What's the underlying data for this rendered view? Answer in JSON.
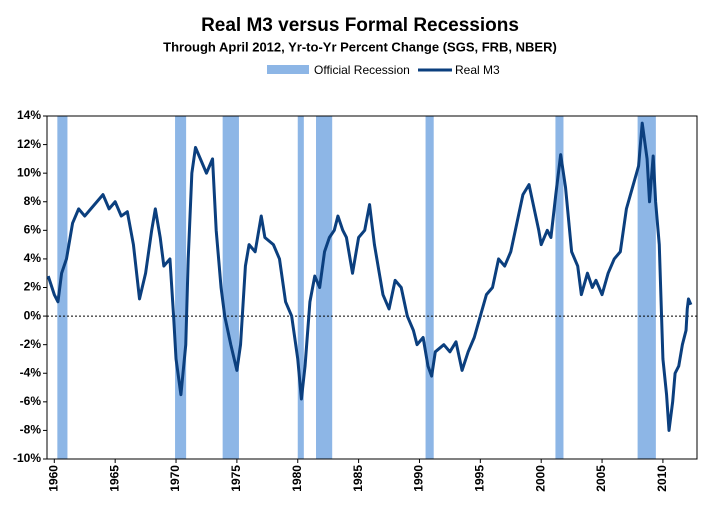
{
  "chart_data": {
    "type": "line",
    "title": "Real M3 versus Formal Recessions",
    "subtitle": "Through April 2012, Yr-to-Yr  Percent Change (SGS, FRB, NBER)",
    "x": [
      1959.5,
      1960.0,
      1960.3,
      1960.6,
      1961.0,
      1961.5,
      1962.0,
      1962.5,
      1963.0,
      1963.5,
      1964.0,
      1964.5,
      1965.0,
      1965.5,
      1966.0,
      1966.5,
      1967.0,
      1967.5,
      1968.0,
      1968.3,
      1968.7,
      1969.0,
      1969.5,
      1969.8,
      1970.0,
      1970.4,
      1970.8,
      1971.0,
      1971.3,
      1971.6,
      1972.0,
      1972.5,
      1973.0,
      1973.3,
      1973.7,
      1974.0,
      1974.5,
      1975.0,
      1975.3,
      1975.7,
      1976.0,
      1976.5,
      1977.0,
      1977.3,
      1978.0,
      1978.5,
      1979.0,
      1979.5,
      1980.0,
      1980.3,
      1980.6,
      1981.0,
      1981.4,
      1981.8,
      1982.2,
      1982.6,
      1983.0,
      1983.3,
      1983.7,
      1984.0,
      1984.5,
      1985.0,
      1985.5,
      1985.9,
      1986.3,
      1986.7,
      1987.0,
      1987.5,
      1988.0,
      1988.5,
      1989.0,
      1989.5,
      1989.8,
      1990.3,
      1990.7,
      1991.0,
      1991.3,
      1992.0,
      1992.5,
      1993.0,
      1993.5,
      1994.0,
      1994.5,
      1995.0,
      1995.5,
      1996.0,
      1996.5,
      1997.0,
      1997.5,
      1998.0,
      1998.5,
      1999.0,
      1999.3,
      1999.8,
      2000.0,
      2000.5,
      2000.8,
      2001.2,
      2001.6,
      2002.0,
      2002.5,
      2003.0,
      2003.3,
      2003.8,
      2004.2,
      2004.5,
      2005.0,
      2005.5,
      2006.0,
      2006.5,
      2007.0,
      2007.5,
      2008.0,
      2008.3,
      2008.7,
      2008.9,
      2009.2,
      2009.4,
      2009.7,
      2010.0,
      2010.3,
      2010.5,
      2010.8,
      2011.0,
      2011.3,
      2011.6,
      2011.9,
      2012.0,
      2012.1,
      2012.3
    ],
    "series": [
      {
        "name": "Real M3",
        "color": "#0b3f7e",
        "values": [
          2.8,
          1.5,
          1.0,
          3.0,
          4.0,
          6.5,
          7.5,
          7.0,
          7.5,
          8.0,
          8.5,
          7.5,
          8.0,
          7.0,
          7.3,
          5.0,
          1.2,
          3.0,
          6.0,
          7.5,
          5.5,
          3.5,
          4.0,
          0.0,
          -3.0,
          -5.5,
          -2.0,
          4.0,
          10.0,
          11.8,
          11.0,
          10.0,
          11.0,
          6.0,
          2.0,
          0.0,
          -2.0,
          -3.8,
          -2.0,
          3.5,
          5.0,
          4.5,
          7.0,
          5.5,
          5.0,
          4.0,
          1.0,
          0.0,
          -3.0,
          -5.8,
          -3.5,
          1.0,
          2.8,
          2.0,
          4.5,
          5.5,
          6.0,
          7.0,
          6.0,
          5.5,
          3.0,
          5.5,
          6.0,
          7.8,
          5.0,
          3.0,
          1.5,
          0.5,
          2.5,
          2.0,
          0.0,
          -1.0,
          -2.0,
          -1.5,
          -3.5,
          -4.2,
          -2.5,
          -2.0,
          -2.5,
          -1.8,
          -3.8,
          -2.5,
          -1.5,
          0.0,
          1.5,
          2.0,
          4.0,
          3.5,
          4.5,
          6.5,
          8.5,
          9.2,
          8.0,
          6.0,
          5.0,
          6.0,
          5.5,
          8.5,
          11.3,
          9.0,
          4.5,
          3.5,
          1.5,
          3.0,
          2.0,
          2.5,
          1.5,
          3.0,
          4.0,
          4.5,
          7.5,
          9.0,
          10.5,
          13.5,
          11.0,
          8.0,
          11.2,
          8.0,
          5.0,
          -3.0,
          -5.5,
          -8.0,
          -6.0,
          -4.0,
          -3.5,
          -2.0,
          -1.0,
          0.5,
          1.2,
          0.8
        ]
      }
    ],
    "recessions": {
      "name": "Official Recession",
      "color": "#8db6e6",
      "ranges": [
        [
          1960.25,
          1961.08
        ],
        [
          1969.92,
          1970.83
        ],
        [
          1973.83,
          1975.17
        ],
        [
          1980.0,
          1980.5
        ],
        [
          1981.5,
          1982.83
        ],
        [
          1990.5,
          1991.17
        ],
        [
          2001.17,
          2001.83
        ],
        [
          2007.92,
          2009.42
        ]
      ]
    },
    "xlim": [
      1959.4,
      2012.8
    ],
    "xticks": [
      1960,
      1965,
      1970,
      1975,
      1980,
      1985,
      1990,
      1995,
      2000,
      2005,
      2010
    ],
    "ylim": [
      -10,
      14
    ],
    "yticks": [
      {
        "value": -10,
        "label": "-10%"
      },
      {
        "value": -8,
        "label": "-8%"
      },
      {
        "value": -6,
        "label": "-6%"
      },
      {
        "value": -4,
        "label": "-4%"
      },
      {
        "value": -2,
        "label": "-2%"
      },
      {
        "value": 0,
        "label": "0%"
      },
      {
        "value": 2,
        "label": "2%"
      },
      {
        "value": 4,
        "label": "4%"
      },
      {
        "value": 6,
        "label": "6%"
      },
      {
        "value": 8,
        "label": "8%"
      },
      {
        "value": 10,
        "label": "10%"
      },
      {
        "value": 12,
        "label": "12%"
      },
      {
        "value": 14,
        "label": "14%"
      }
    ]
  }
}
